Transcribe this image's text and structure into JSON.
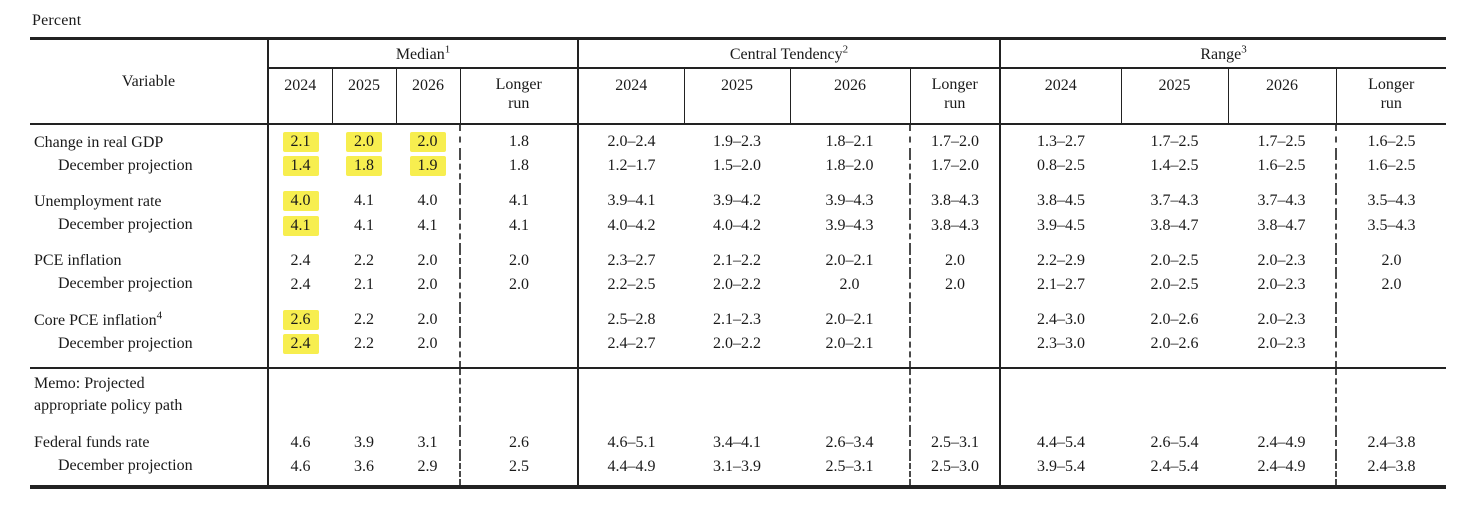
{
  "unit_label": "Percent",
  "table": {
    "variable_header": "Variable",
    "highlight_color": "#f7ee4f",
    "groups": [
      {
        "label": "Median",
        "sup": "1"
      },
      {
        "label": "Central Tendency",
        "sup": "2"
      },
      {
        "label": "Range",
        "sup": "3"
      }
    ],
    "year_headers": [
      "2024",
      "2025",
      "2026",
      "Longer run"
    ],
    "rows": [
      {
        "label": "Change in real GDP",
        "indent": false,
        "gap_after": false,
        "median": [
          "2.1",
          "2.0",
          "2.0",
          "1.8"
        ],
        "median_hl": [
          true,
          true,
          true,
          false
        ],
        "central": [
          "2.0–2.4",
          "1.9–2.3",
          "1.8–2.1",
          "1.7–2.0"
        ],
        "range": [
          "1.3–2.7",
          "1.7–2.5",
          "1.7–2.5",
          "1.6–2.5"
        ]
      },
      {
        "label": "December projection",
        "indent": true,
        "gap_after": true,
        "median": [
          "1.4",
          "1.8",
          "1.9",
          "1.8"
        ],
        "median_hl": [
          true,
          true,
          true,
          false
        ],
        "central": [
          "1.2–1.7",
          "1.5–2.0",
          "1.8–2.0",
          "1.7–2.0"
        ],
        "range": [
          "0.8–2.5",
          "1.4–2.5",
          "1.6–2.5",
          "1.6–2.5"
        ]
      },
      {
        "label": "Unemployment rate",
        "indent": false,
        "gap_after": false,
        "median": [
          "4.0",
          "4.1",
          "4.0",
          "4.1"
        ],
        "median_hl": [
          true,
          false,
          false,
          false
        ],
        "central": [
          "3.9–4.1",
          "3.9–4.2",
          "3.9–4.3",
          "3.8–4.3"
        ],
        "range": [
          "3.8–4.5",
          "3.7–4.3",
          "3.7–4.3",
          "3.5–4.3"
        ]
      },
      {
        "label": "December projection",
        "indent": true,
        "gap_after": true,
        "median": [
          "4.1",
          "4.1",
          "4.1",
          "4.1"
        ],
        "median_hl": [
          true,
          false,
          false,
          false
        ],
        "central": [
          "4.0–4.2",
          "4.0–4.2",
          "3.9–4.3",
          "3.8–4.3"
        ],
        "range": [
          "3.9–4.5",
          "3.8–4.7",
          "3.8–4.7",
          "3.5–4.3"
        ]
      },
      {
        "label": "PCE inflation",
        "indent": false,
        "gap_after": false,
        "median": [
          "2.4",
          "2.2",
          "2.0",
          "2.0"
        ],
        "median_hl": [
          false,
          false,
          false,
          false
        ],
        "central": [
          "2.3–2.7",
          "2.1–2.2",
          "2.0–2.1",
          "2.0"
        ],
        "range": [
          "2.2–2.9",
          "2.0–2.5",
          "2.0–2.3",
          "2.0"
        ]
      },
      {
        "label": "December projection",
        "indent": true,
        "gap_after": true,
        "median": [
          "2.4",
          "2.1",
          "2.0",
          "2.0"
        ],
        "median_hl": [
          false,
          false,
          false,
          false
        ],
        "central": [
          "2.2–2.5",
          "2.0–2.2",
          "2.0",
          "2.0"
        ],
        "range": [
          "2.1–2.7",
          "2.0–2.5",
          "2.0–2.3",
          "2.0"
        ]
      },
      {
        "label": "Core PCE inflation",
        "sup": "4",
        "indent": false,
        "gap_after": false,
        "median": [
          "2.6",
          "2.2",
          "2.0",
          ""
        ],
        "median_hl": [
          true,
          false,
          false,
          false
        ],
        "central": [
          "2.5–2.8",
          "2.1–2.3",
          "2.0–2.1",
          ""
        ],
        "range": [
          "2.4–3.0",
          "2.0–2.6",
          "2.0–2.3",
          ""
        ]
      },
      {
        "label": "December projection",
        "indent": true,
        "gap_after": true,
        "median": [
          "2.4",
          "2.2",
          "2.0",
          ""
        ],
        "median_hl": [
          true,
          false,
          false,
          false
        ],
        "central": [
          "2.4–2.7",
          "2.0–2.2",
          "2.0–2.1",
          ""
        ],
        "range": [
          "2.3–3.0",
          "2.0–2.6",
          "2.0–2.3",
          ""
        ]
      },
      {
        "memo": true,
        "memo_lines": [
          "Memo: Projected",
          "appropriate policy path"
        ]
      },
      {
        "label": "Federal funds rate",
        "indent": false,
        "gap_after": false,
        "median": [
          "4.6",
          "3.9",
          "3.1",
          "2.6"
        ],
        "median_hl": [
          false,
          false,
          false,
          false
        ],
        "central": [
          "4.6–5.1",
          "3.4–4.1",
          "2.6–3.4",
          "2.5–3.1"
        ],
        "range": [
          "4.4–5.4",
          "2.6–5.4",
          "2.4–4.9",
          "2.4–3.8"
        ]
      },
      {
        "label": "December projection",
        "indent": true,
        "gap_after": false,
        "median": [
          "4.6",
          "3.6",
          "2.9",
          "2.5"
        ],
        "median_hl": [
          false,
          false,
          false,
          false
        ],
        "central": [
          "4.4–4.9",
          "3.1–3.9",
          "2.5–3.1",
          "2.5–3.0"
        ],
        "range": [
          "3.9–5.4",
          "2.4–5.4",
          "2.4–4.9",
          "2.4–3.8"
        ]
      }
    ]
  }
}
